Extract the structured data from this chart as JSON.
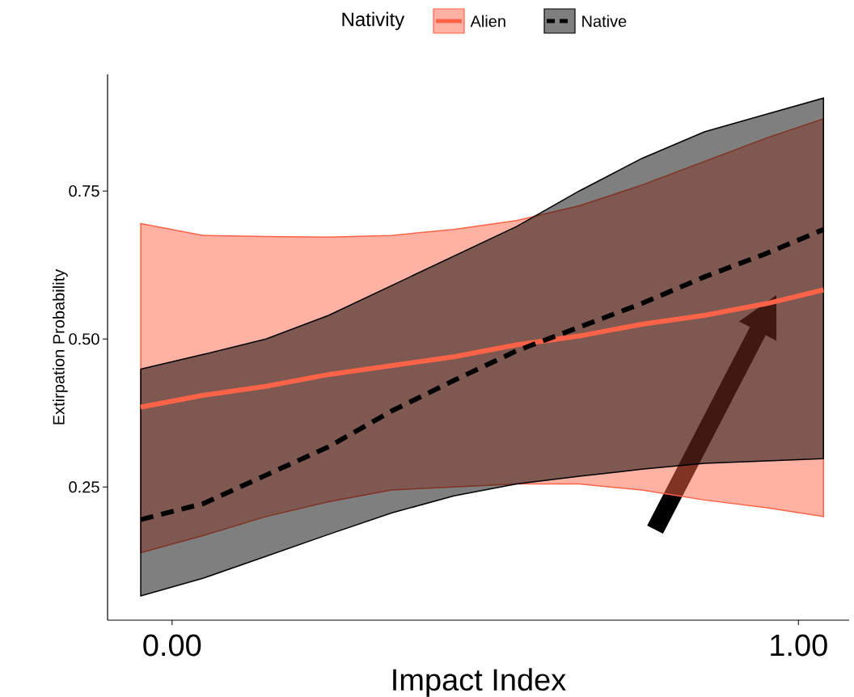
{
  "chart_data": {
    "type": "line",
    "xlabel": "Impact Index",
    "ylabel": "Extirpation Probability",
    "legend_title": "Nativity",
    "legend": "top",
    "marker": "none",
    "x": [
      -0.05,
      0.05,
      0.15,
      0.25,
      0.35,
      0.45,
      0.55,
      0.65,
      0.75,
      0.85,
      0.95,
      1.04
    ],
    "xlim": [
      -0.103,
      1.081
    ],
    "xticks": [
      {
        "value": 0,
        "label": "0.00"
      },
      {
        "value": 1,
        "label": "1.00"
      }
    ],
    "ylim": [
      0.025,
      0.947
    ],
    "yticks": [
      {
        "value": 0.25,
        "label": "0.25"
      },
      {
        "value": 0.5,
        "label": "0.50"
      },
      {
        "value": 0.75,
        "label": "0.75"
      }
    ],
    "series": [
      {
        "name": "Alien",
        "color": "#ff6347",
        "line_style": "solid",
        "values": [
          0.385,
          0.405,
          0.42,
          0.44,
          0.455,
          0.47,
          0.49,
          0.505,
          0.525,
          0.54,
          0.56,
          0.583
        ],
        "lower": [
          0.139,
          0.168,
          0.2,
          0.225,
          0.245,
          0.25,
          0.255,
          0.255,
          0.245,
          0.228,
          0.215,
          0.2
        ],
        "upper": [
          0.695,
          0.675,
          0.673,
          0.672,
          0.675,
          0.685,
          0.7,
          0.725,
          0.76,
          0.8,
          0.84,
          0.872
        ]
      },
      {
        "name": "Native",
        "color": "#000000",
        "line_style": "dashed",
        "values": [
          0.195,
          0.222,
          0.27,
          0.318,
          0.378,
          0.43,
          0.48,
          0.52,
          0.56,
          0.605,
          0.645,
          0.685
        ],
        "lower": [
          0.066,
          0.096,
          0.133,
          0.17,
          0.206,
          0.235,
          0.255,
          0.268,
          0.28,
          0.29,
          0.294,
          0.298
        ],
        "upper": [
          0.449,
          0.474,
          0.5,
          0.54,
          0.59,
          0.64,
          0.69,
          0.75,
          0.805,
          0.85,
          0.88,
          0.907
        ]
      }
    ]
  }
}
